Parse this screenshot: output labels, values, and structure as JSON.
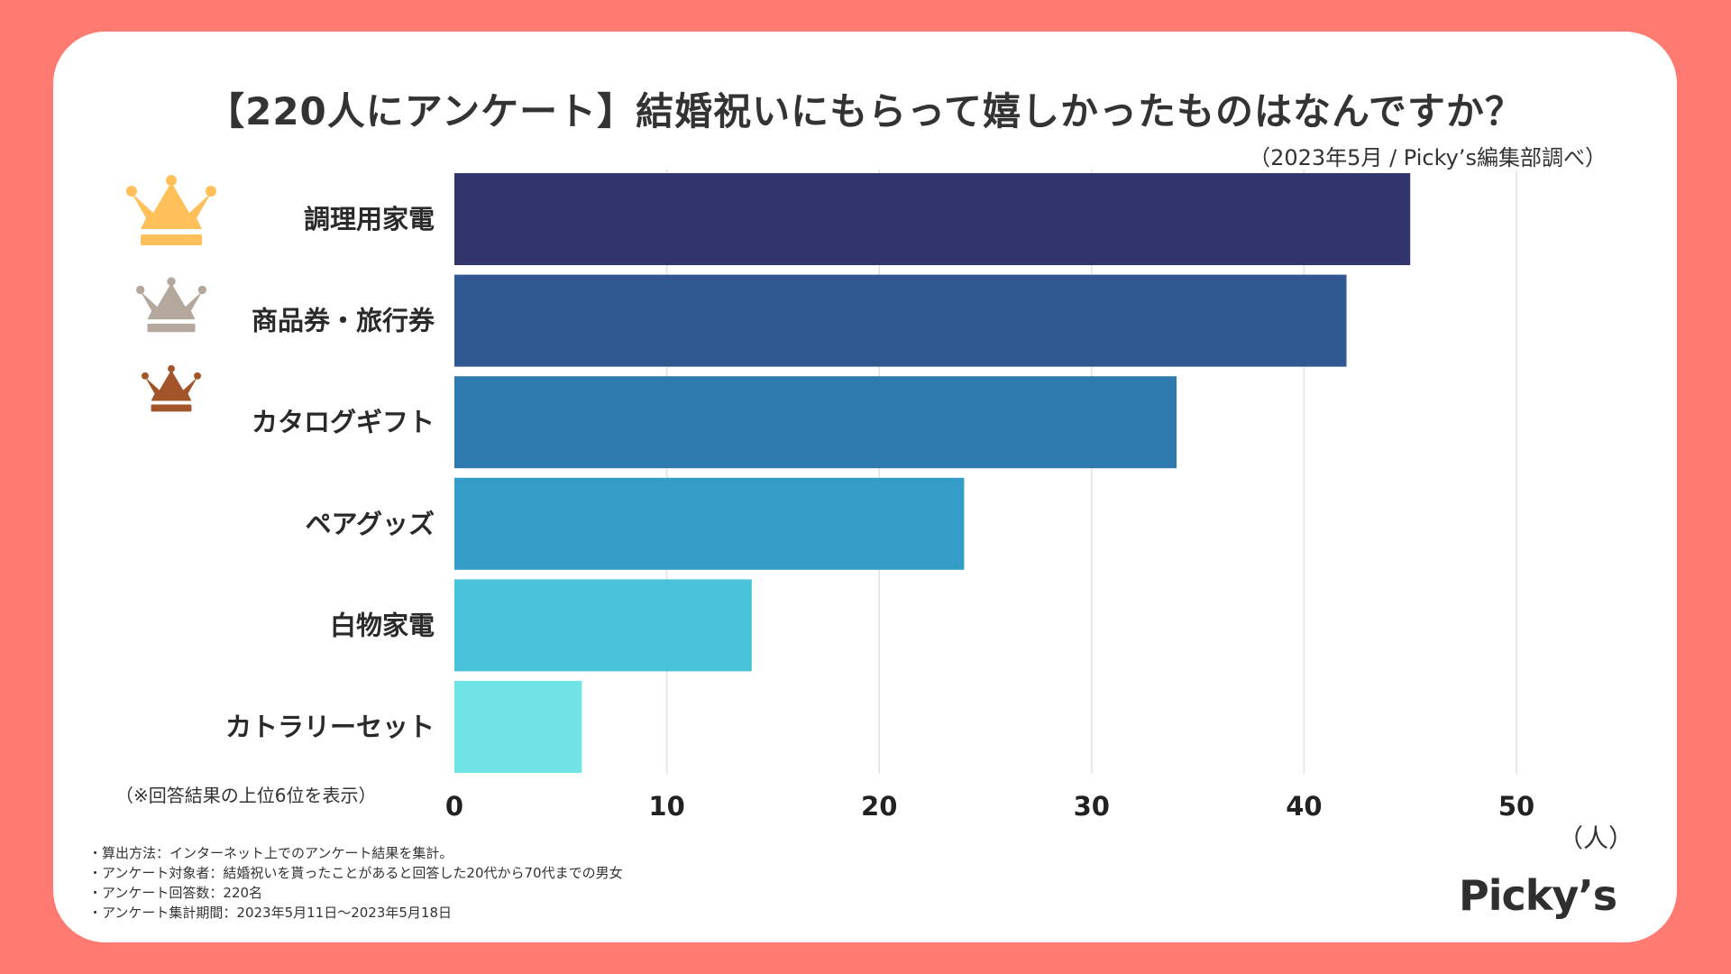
{
  "title": "【220人にアンケート】結婚祝いにもらって嬉しかったものはなんですか？",
  "subtitle": "（2023年5月 / Picky’s編集部調べ）",
  "note": "（※回答結果の上位6位を表示）",
  "unit_label": "（人）",
  "footnotes": [
    "・算出方法：インターネット上でのアンケート結果を集計。",
    "・アンケート対象者：結婚祝いを貰ったことがあると回答した20代から70代までの男女",
    "・アンケート回答数：220名",
    "・アンケート集計期間：2023年5月11日〜2023年5月18日"
  ],
  "brand": "Picky’s",
  "crowns": [
    {
      "name": "gold-crown-icon",
      "color": "#ffc05a"
    },
    {
      "name": "silver-crown-icon",
      "color": "#b4a79c"
    },
    {
      "name": "bronze-crown-icon",
      "color": "#a3552a"
    }
  ],
  "chart_data": {
    "type": "bar",
    "orientation": "horizontal",
    "title": "【220人にアンケート】結婚祝いにもらって嬉しかったものはなんですか？",
    "categories": [
      "調理用家電",
      "商品券・旅行券",
      "カタログギフト",
      "ペアグッズ",
      "白物家電",
      "カトラリーセット"
    ],
    "values": [
      45,
      42,
      34,
      24,
      14,
      6
    ],
    "colors": [
      "#31356b",
      "#2f5891",
      "#2e7aaf",
      "#349ec9",
      "#49c3da",
      "#6fe4e7"
    ],
    "xlim": [
      0,
      55
    ],
    "xticks": [
      0,
      10,
      20,
      30,
      40,
      50
    ],
    "xlabel": "（人）",
    "ylabel": "",
    "grid": true
  }
}
